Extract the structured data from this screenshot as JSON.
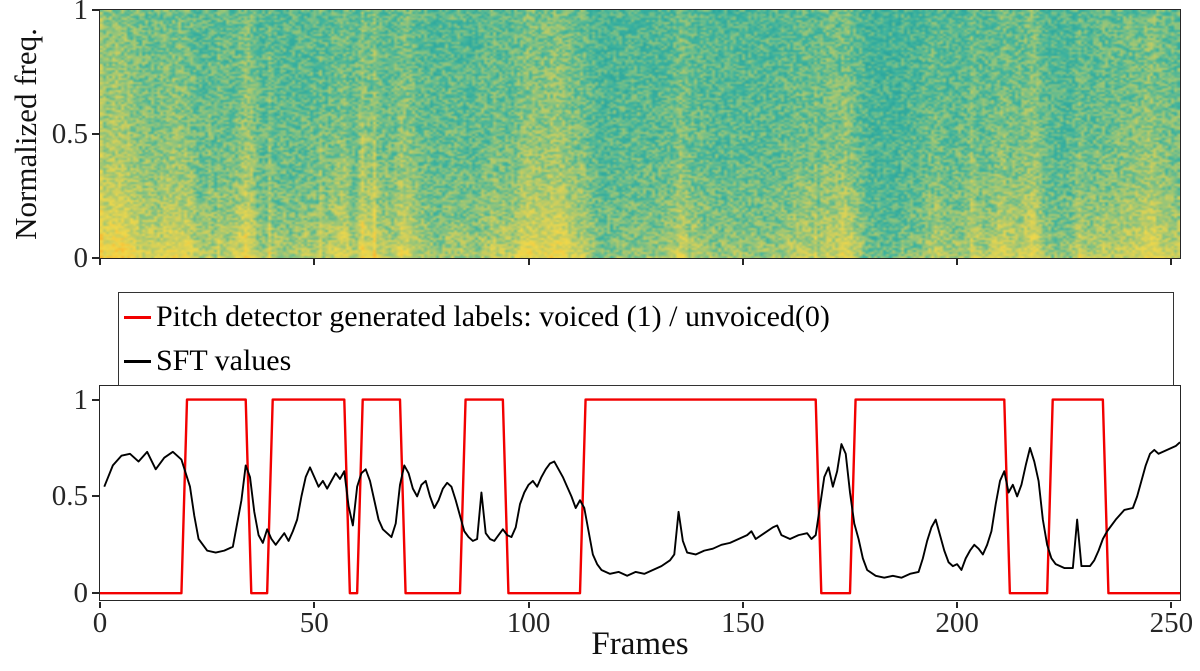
{
  "figure": {
    "background": "#ffffff",
    "axis_color": "#262626",
    "tick_label_color": "#262626"
  },
  "chart_data": [
    {
      "type": "heatmap",
      "subtype": "spectrogram",
      "ylabel": "Normalized freq.",
      "yticks": [
        0,
        0.5,
        1
      ],
      "x_range": [
        0,
        252
      ],
      "y_range": [
        0,
        1
      ],
      "description": "Speech spectrogram over ~252 frames: teal low-energy background with bright yellow high-energy regions, strongest at low normalized frequencies and inside voiced segments",
      "colormap_stops": [
        {
          "v": 0.0,
          "c": "#1b7f8e"
        },
        {
          "v": 0.2,
          "c": "#27a49e"
        },
        {
          "v": 0.35,
          "c": "#3cb3a0"
        },
        {
          "v": 0.5,
          "c": "#8ec47e"
        },
        {
          "v": 0.65,
          "c": "#cfcf5d"
        },
        {
          "v": 0.8,
          "c": "#f2d94a"
        },
        {
          "v": 1.0,
          "c": "#fcb52d"
        }
      ]
    },
    {
      "type": "line",
      "xlabel": "Frames",
      "xticks": [
        0,
        50,
        100,
        150,
        200,
        250
      ],
      "yticks": [
        0,
        0.5,
        1
      ],
      "xlim": [
        0,
        252
      ],
      "ylim": [
        -0.035,
        1.07
      ],
      "legend_position": "north",
      "series": [
        {
          "name": "Pitch detector generated labels: voiced (1) / unvoiced(0)",
          "color": "#f20000",
          "style": "step",
          "low": 0,
          "high": 1,
          "voiced_intervals": [
            [
              19,
              34
            ],
            [
              39,
              57
            ],
            [
              60,
              70
            ],
            [
              84,
              94
            ],
            [
              112,
              167
            ],
            [
              175,
              211
            ],
            [
              221,
              234
            ]
          ]
        },
        {
          "name": "SFT values",
          "color": "#000000",
          "style": "line",
          "points": [
            [
              1,
              0.55
            ],
            [
              3,
              0.66
            ],
            [
              5,
              0.71
            ],
            [
              7,
              0.72
            ],
            [
              9,
              0.68
            ],
            [
              11,
              0.73
            ],
            [
              13,
              0.64
            ],
            [
              15,
              0.7
            ],
            [
              17,
              0.73
            ],
            [
              19,
              0.69
            ],
            [
              21,
              0.55
            ],
            [
              22,
              0.4
            ],
            [
              23,
              0.28
            ],
            [
              25,
              0.22
            ],
            [
              27,
              0.21
            ],
            [
              29,
              0.22
            ],
            [
              31,
              0.24
            ],
            [
              33,
              0.48
            ],
            [
              34,
              0.66
            ],
            [
              35,
              0.6
            ],
            [
              36,
              0.42
            ],
            [
              37,
              0.3
            ],
            [
              38,
              0.26
            ],
            [
              39,
              0.33
            ],
            [
              40,
              0.28
            ],
            [
              41,
              0.25
            ],
            [
              42,
              0.28
            ],
            [
              43,
              0.31
            ],
            [
              44,
              0.27
            ],
            [
              45,
              0.32
            ],
            [
              46,
              0.38
            ],
            [
              47,
              0.5
            ],
            [
              48,
              0.6
            ],
            [
              49,
              0.65
            ],
            [
              50,
              0.6
            ],
            [
              51,
              0.55
            ],
            [
              52,
              0.58
            ],
            [
              53,
              0.54
            ],
            [
              54,
              0.58
            ],
            [
              55,
              0.62
            ],
            [
              56,
              0.59
            ],
            [
              57,
              0.63
            ],
            [
              58,
              0.45
            ],
            [
              59,
              0.35
            ],
            [
              60,
              0.55
            ],
            [
              61,
              0.62
            ],
            [
              62,
              0.64
            ],
            [
              63,
              0.58
            ],
            [
              64,
              0.48
            ],
            [
              65,
              0.38
            ],
            [
              66,
              0.33
            ],
            [
              67,
              0.31
            ],
            [
              68,
              0.29
            ],
            [
              69,
              0.36
            ],
            [
              70,
              0.56
            ],
            [
              71,
              0.66
            ],
            [
              72,
              0.62
            ],
            [
              73,
              0.54
            ],
            [
              74,
              0.5
            ],
            [
              75,
              0.56
            ],
            [
              76,
              0.58
            ],
            [
              77,
              0.5
            ],
            [
              78,
              0.44
            ],
            [
              79,
              0.48
            ],
            [
              80,
              0.54
            ],
            [
              81,
              0.57
            ],
            [
              82,
              0.55
            ],
            [
              83,
              0.48
            ],
            [
              84,
              0.4
            ],
            [
              85,
              0.32
            ],
            [
              86,
              0.29
            ],
            [
              87,
              0.27
            ],
            [
              88,
              0.28
            ],
            [
              89,
              0.52
            ],
            [
              90,
              0.31
            ],
            [
              91,
              0.28
            ],
            [
              92,
              0.27
            ],
            [
              93,
              0.3
            ],
            [
              94,
              0.33
            ],
            [
              95,
              0.3
            ],
            [
              96,
              0.29
            ],
            [
              97,
              0.34
            ],
            [
              98,
              0.46
            ],
            [
              99,
              0.52
            ],
            [
              100,
              0.56
            ],
            [
              101,
              0.58
            ],
            [
              102,
              0.55
            ],
            [
              103,
              0.6
            ],
            [
              104,
              0.64
            ],
            [
              105,
              0.67
            ],
            [
              106,
              0.68
            ],
            [
              107,
              0.64
            ],
            [
              108,
              0.6
            ],
            [
              109,
              0.55
            ],
            [
              110,
              0.5
            ],
            [
              111,
              0.44
            ],
            [
              112,
              0.48
            ],
            [
              113,
              0.44
            ],
            [
              114,
              0.32
            ],
            [
              115,
              0.2
            ],
            [
              116,
              0.15
            ],
            [
              117,
              0.12
            ],
            [
              119,
              0.1
            ],
            [
              121,
              0.11
            ],
            [
              123,
              0.09
            ],
            [
              125,
              0.11
            ],
            [
              127,
              0.1
            ],
            [
              129,
              0.12
            ],
            [
              131,
              0.14
            ],
            [
              133,
              0.17
            ],
            [
              134,
              0.2
            ],
            [
              135,
              0.42
            ],
            [
              136,
              0.27
            ],
            [
              137,
              0.21
            ],
            [
              139,
              0.2
            ],
            [
              141,
              0.22
            ],
            [
              143,
              0.23
            ],
            [
              145,
              0.25
            ],
            [
              147,
              0.26
            ],
            [
              149,
              0.28
            ],
            [
              151,
              0.3
            ],
            [
              152,
              0.32
            ],
            [
              153,
              0.28
            ],
            [
              155,
              0.31
            ],
            [
              157,
              0.34
            ],
            [
              158,
              0.35
            ],
            [
              159,
              0.3
            ],
            [
              161,
              0.28
            ],
            [
              163,
              0.3
            ],
            [
              165,
              0.31
            ],
            [
              166,
              0.28
            ],
            [
              167,
              0.3
            ],
            [
              168,
              0.45
            ],
            [
              169,
              0.6
            ],
            [
              170,
              0.65
            ],
            [
              171,
              0.55
            ],
            [
              172,
              0.63
            ],
            [
              173,
              0.77
            ],
            [
              174,
              0.72
            ],
            [
              175,
              0.52
            ],
            [
              176,
              0.36
            ],
            [
              177,
              0.28
            ],
            [
              178,
              0.18
            ],
            [
              179,
              0.12
            ],
            [
              181,
              0.09
            ],
            [
              183,
              0.08
            ],
            [
              185,
              0.09
            ],
            [
              187,
              0.08
            ],
            [
              189,
              0.1
            ],
            [
              191,
              0.11
            ],
            [
              192,
              0.18
            ],
            [
              193,
              0.27
            ],
            [
              194,
              0.34
            ],
            [
              195,
              0.38
            ],
            [
              196,
              0.3
            ],
            [
              197,
              0.22
            ],
            [
              198,
              0.16
            ],
            [
              199,
              0.14
            ],
            [
              200,
              0.15
            ],
            [
              201,
              0.12
            ],
            [
              202,
              0.18
            ],
            [
              203,
              0.22
            ],
            [
              204,
              0.25
            ],
            [
              205,
              0.23
            ],
            [
              206,
              0.2
            ],
            [
              207,
              0.25
            ],
            [
              208,
              0.32
            ],
            [
              209,
              0.46
            ],
            [
              210,
              0.58
            ],
            [
              211,
              0.63
            ],
            [
              212,
              0.52
            ],
            [
              213,
              0.56
            ],
            [
              214,
              0.5
            ],
            [
              215,
              0.56
            ],
            [
              216,
              0.66
            ],
            [
              217,
              0.75
            ],
            [
              218,
              0.68
            ],
            [
              219,
              0.58
            ],
            [
              220,
              0.38
            ],
            [
              221,
              0.25
            ],
            [
              222,
              0.18
            ],
            [
              223,
              0.15
            ],
            [
              225,
              0.13
            ],
            [
              227,
              0.13
            ],
            [
              228,
              0.38
            ],
            [
              229,
              0.14
            ],
            [
              231,
              0.14
            ],
            [
              232,
              0.17
            ],
            [
              233,
              0.22
            ],
            [
              234,
              0.28
            ],
            [
              235,
              0.32
            ],
            [
              237,
              0.38
            ],
            [
              239,
              0.43
            ],
            [
              241,
              0.44
            ],
            [
              242,
              0.5
            ],
            [
              243,
              0.58
            ],
            [
              244,
              0.66
            ],
            [
              245,
              0.72
            ],
            [
              246,
              0.74
            ],
            [
              247,
              0.72
            ],
            [
              249,
              0.74
            ],
            [
              251,
              0.76
            ],
            [
              252,
              0.78
            ]
          ]
        }
      ]
    }
  ]
}
